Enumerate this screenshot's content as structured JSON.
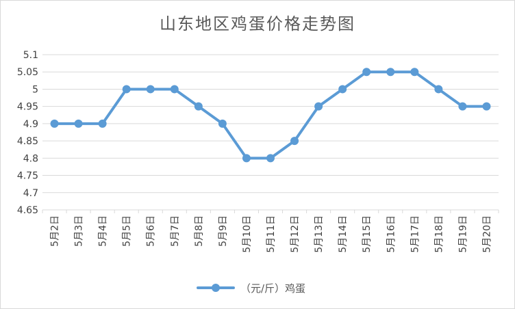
{
  "chart_data": {
    "type": "line",
    "title": "山东地区鸡蛋价格走势图",
    "xlabel": "",
    "ylabel": "",
    "ylim": [
      4.65,
      5.1
    ],
    "yticks": [
      "5.1",
      "5.05",
      "5",
      "4.95",
      "4.9",
      "4.85",
      "4.8",
      "4.75",
      "4.7",
      "4.65"
    ],
    "ytick_values": [
      5.1,
      5.05,
      5.0,
      4.95,
      4.9,
      4.85,
      4.8,
      4.75,
      4.7,
      4.65
    ],
    "grid": true,
    "legend": "bottom",
    "categories": [
      "5月2日",
      "5月3日",
      "5月4日",
      "5月5日",
      "5月6日",
      "5月7日",
      "5月8日",
      "5月9日",
      "5月10日",
      "5月11日",
      "5月12日",
      "5月13日",
      "5月14日",
      "5月15日",
      "5月16日",
      "5月17日",
      "5月18日",
      "5月19日",
      "5月20日"
    ],
    "series": [
      {
        "name": "（元/斤）鸡蛋",
        "color": "#5b9bd5",
        "values": [
          4.9,
          4.9,
          4.9,
          5.0,
          5.0,
          5.0,
          4.95,
          4.9,
          4.8,
          4.8,
          4.85,
          4.95,
          5.0,
          5.05,
          5.05,
          5.05,
          5.0,
          4.95,
          4.95
        ]
      }
    ]
  }
}
